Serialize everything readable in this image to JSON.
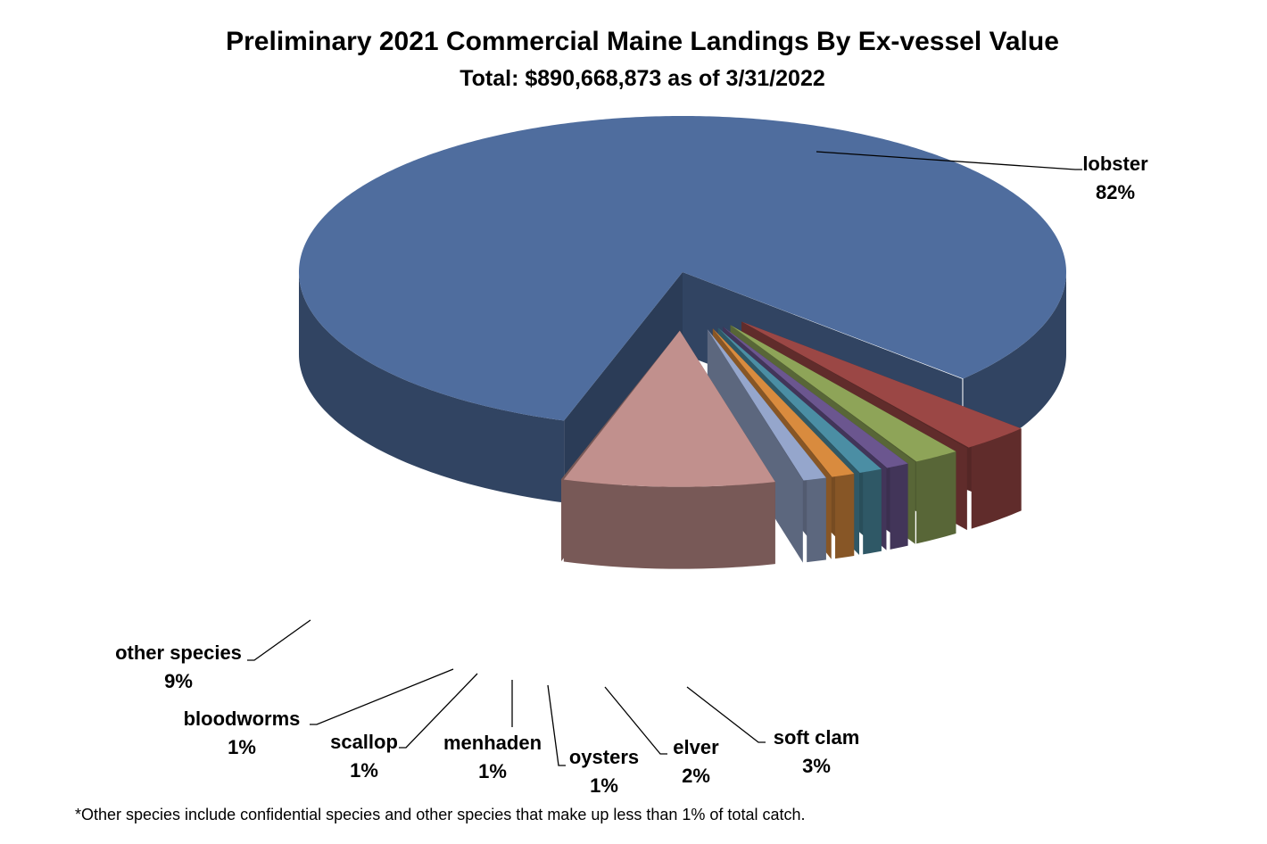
{
  "chart_data": {
    "type": "pie",
    "title": "Preliminary 2021 Commercial Maine Landings By Ex-vessel Value",
    "subtitle": "Total: $890,668,873 as of 3/31/2022",
    "slices": [
      {
        "label": "lobster",
        "value": 82,
        "display": "82%",
        "color": "#4f6d9e"
      },
      {
        "label": "soft clam",
        "value": 3,
        "display": "3%",
        "color": "#9b4745"
      },
      {
        "label": "elver",
        "value": 2,
        "display": "2%",
        "color": "#8ea458"
      },
      {
        "label": "oysters",
        "value": 1,
        "display": "1%",
        "color": "#6b568f"
      },
      {
        "label": "menhaden",
        "value": 1,
        "display": "1%",
        "color": "#4b8ea4"
      },
      {
        "label": "scallop",
        "value": 1,
        "display": "1%",
        "color": "#d98b3e"
      },
      {
        "label": "bloodworms",
        "value": 1,
        "display": "1%",
        "color": "#95a6cc"
      },
      {
        "label": "other species",
        "value": 9,
        "display": "9%",
        "color": "#c1908d"
      }
    ],
    "footnote": "*Other species include confidential species and other species that make up less than 1% of total catch."
  }
}
